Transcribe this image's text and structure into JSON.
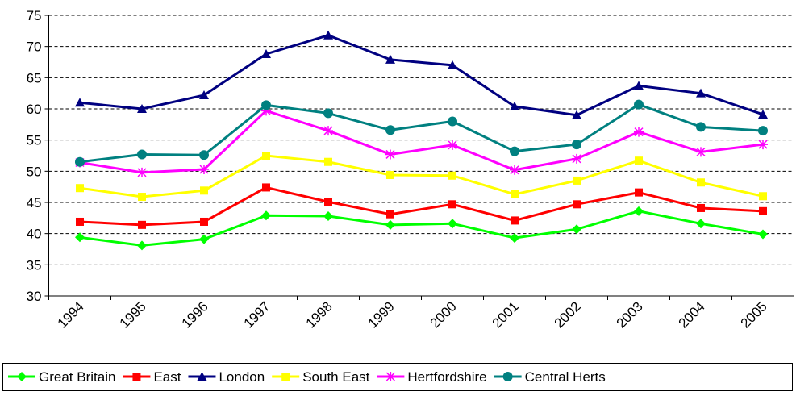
{
  "chart_data": {
    "type": "line",
    "categories": [
      "1994",
      "1995",
      "1996",
      "1997",
      "1998",
      "1999",
      "2000",
      "2001",
      "2002",
      "2003",
      "2004",
      "2005"
    ],
    "series": [
      {
        "name": "Great Britain",
        "color": "#00ff00",
        "marker": "diamond",
        "values": [
          39.4,
          38.1,
          39.1,
          42.9,
          42.8,
          41.4,
          41.6,
          39.3,
          40.7,
          43.6,
          41.6,
          39.9
        ]
      },
      {
        "name": "East",
        "color": "#ff0000",
        "marker": "square",
        "values": [
          41.9,
          41.4,
          41.9,
          47.4,
          45.1,
          43.1,
          44.7,
          42.1,
          44.7,
          46.6,
          44.1,
          43.6
        ]
      },
      {
        "name": "London",
        "color": "#000080",
        "marker": "triangle",
        "values": [
          61,
          60,
          62.2,
          68.8,
          71.8,
          67.9,
          67,
          60.4,
          59,
          63.7,
          62.5,
          59.1
        ]
      },
      {
        "name": "South East",
        "color": "#ffff00",
        "marker": "square",
        "values": [
          47.3,
          45.9,
          46.9,
          52.5,
          51.5,
          49.4,
          49.3,
          46.3,
          48.5,
          51.7,
          48.2,
          46
        ]
      },
      {
        "name": "Hertfordshire",
        "color": "#ff00ff",
        "marker": "asterisk",
        "values": [
          51.4,
          49.8,
          50.3,
          59.7,
          56.5,
          52.7,
          54.2,
          50.2,
          52,
          56.3,
          53.1,
          54.3
        ]
      },
      {
        "name": "Central Herts",
        "color": "#008080",
        "marker": "circle",
        "values": [
          51.5,
          52.7,
          52.6,
          60.6,
          59.3,
          56.6,
          58,
          53.2,
          54.3,
          60.7,
          57.1,
          56.5
        ]
      }
    ],
    "ylim": [
      30,
      75
    ],
    "yticks": [
      30,
      35,
      40,
      45,
      50,
      55,
      60,
      65,
      70,
      75
    ],
    "grid": true,
    "legend": "bottom"
  }
}
